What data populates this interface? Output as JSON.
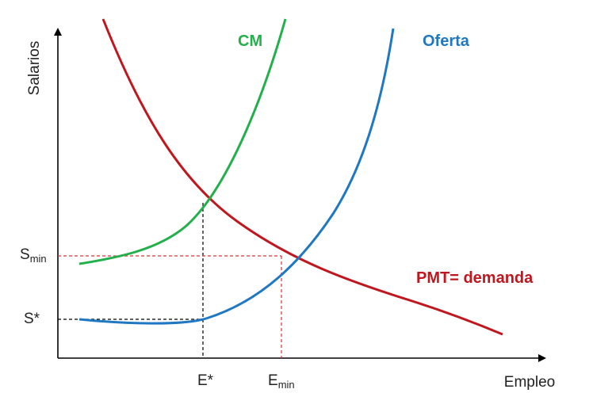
{
  "diagram": {
    "axes": {
      "y_label": "Salarios",
      "x_label": "Empleo"
    },
    "curves": {
      "cm": {
        "label": "CM",
        "color": "#22b04b"
      },
      "oferta": {
        "label": "Oferta",
        "color": "#1f78c1"
      },
      "demanda": {
        "label": "PMT= demanda",
        "color": "#c0171e"
      }
    },
    "y_ticks": {
      "s_min": {
        "base": "S",
        "sub": "min"
      },
      "s_star": {
        "base": "S*"
      }
    },
    "x_ticks": {
      "e_star": {
        "base": "E*"
      },
      "e_min": {
        "base": "E",
        "sub": "min"
      }
    },
    "guide_colors": {
      "black": "#000000",
      "red": "#e03030"
    }
  }
}
